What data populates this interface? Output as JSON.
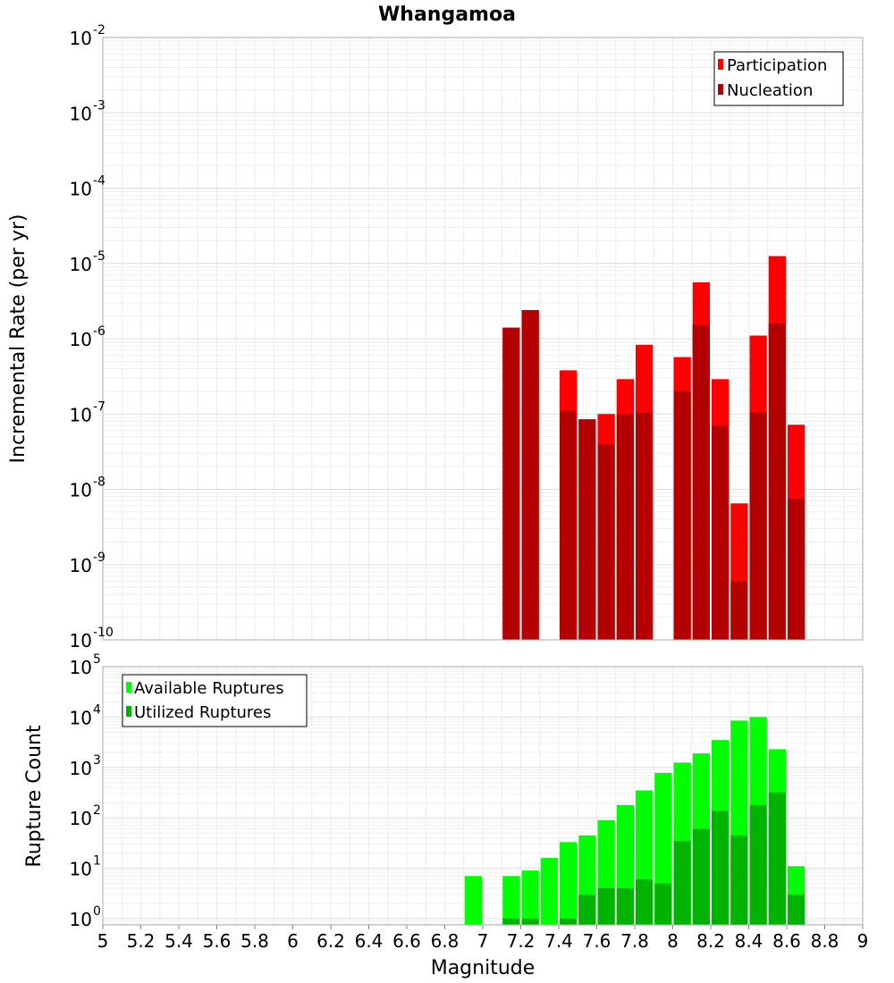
{
  "title": "Whangamoa",
  "chart_data": [
    {
      "type": "bar",
      "id": "rate",
      "yscale": "log",
      "ylim": [
        1e-10,
        0.01
      ],
      "xlim": [
        5,
        9
      ],
      "ylabel": "Incremental Rate (per yr)",
      "bar_width": 0.1,
      "x": [
        7.15,
        7.25,
        7.45,
        7.55,
        7.65,
        7.75,
        7.85,
        8.05,
        8.15,
        8.25,
        8.35,
        8.45,
        8.55,
        8.65
      ],
      "series": [
        {
          "name": "Participation",
          "color": "#ff0000",
          "values": [
            1.4e-06,
            2.4e-06,
            3.8e-07,
            8.5e-08,
            1e-07,
            2.9e-07,
            8.3e-07,
            5.7e-07,
            5.6e-06,
            2.9e-07,
            6.5e-09,
            1.1e-06,
            1.25e-05,
            7.2e-08
          ]
        },
        {
          "name": "Nucleation",
          "color": "#b30000",
          "values": [
            1.4e-06,
            2.4e-06,
            1.1e-07,
            8.5e-08,
            4e-08,
            1e-07,
            1.05e-07,
            2e-07,
            1.55e-06,
            7e-08,
            6e-10,
            1.05e-07,
            1.6e-06,
            7.5e-09
          ]
        }
      ],
      "legend": {
        "position": "top-right",
        "items": [
          "Participation",
          "Nucleation"
        ]
      }
    },
    {
      "type": "bar",
      "id": "count",
      "yscale": "log",
      "ylim": [
        0.75,
        100000.0
      ],
      "xlim": [
        5,
        9
      ],
      "ylabel": "Rupture Count",
      "xlabel": "Magnitude",
      "bar_width": 0.1,
      "x": [
        6.95,
        7.15,
        7.25,
        7.35,
        7.45,
        7.55,
        7.65,
        7.75,
        7.85,
        7.95,
        8.05,
        8.15,
        8.25,
        8.35,
        8.45,
        8.55,
        8.65
      ],
      "series": [
        {
          "name": "Available Ruptures",
          "color": "#00ff00",
          "values": [
            7,
            7,
            9,
            16,
            33,
            45,
            90,
            180,
            350,
            780,
            1250,
            1900,
            3500,
            8500,
            10000,
            2300,
            11
          ]
        },
        {
          "name": "Utilized Ruptures",
          "color": "#00b300",
          "values": [
            0,
            1,
            1,
            0,
            1,
            3,
            4,
            4,
            6,
            5,
            35,
            60,
            140,
            45,
            180,
            320,
            3
          ]
        }
      ],
      "legend": {
        "position": "top-left",
        "items": [
          "Available Ruptures",
          "Utilized Ruptures"
        ]
      }
    }
  ],
  "x_ticks": [
    "5",
    "5.2",
    "5.4",
    "5.6",
    "5.8",
    "6",
    "6.2",
    "6.4",
    "6.6",
    "6.8",
    "7",
    "7.2",
    "7.4",
    "7.6",
    "7.8",
    "8",
    "8.2",
    "8.4",
    "8.6",
    "8.8",
    "9"
  ],
  "rate_y_exponents": [
    "-2",
    "-3",
    "-4",
    "-5",
    "-6",
    "-7",
    "-8",
    "-9",
    "-10"
  ],
  "count_y_exponents": [
    "5",
    "4",
    "3",
    "2",
    "1",
    "0"
  ]
}
